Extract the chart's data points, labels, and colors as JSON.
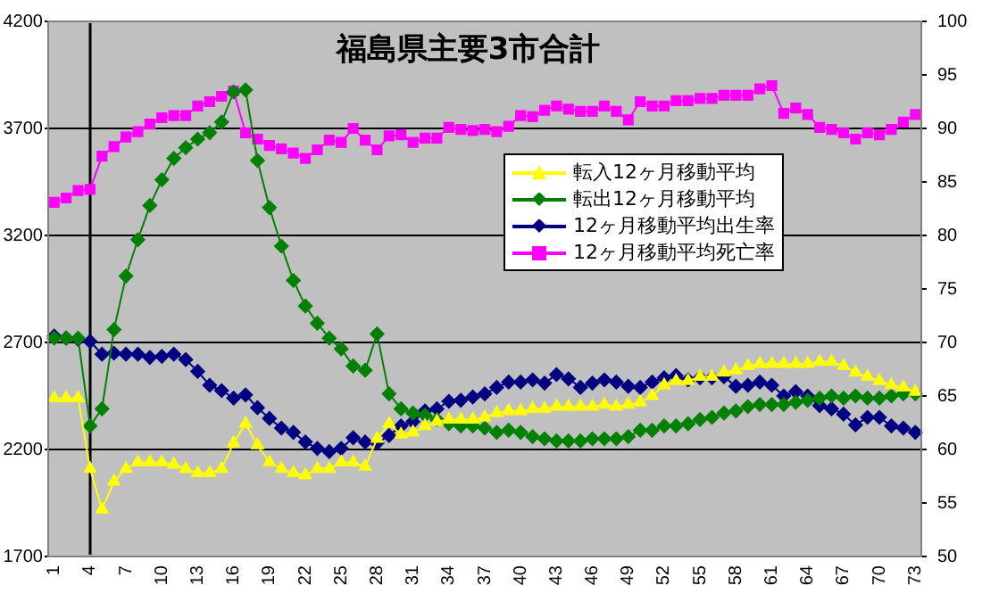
{
  "chart_data": {
    "type": "line",
    "title": "福島県主要3市合計",
    "categories": [
      "1",
      null,
      null,
      "4",
      null,
      null,
      "7",
      null,
      null,
      "10",
      null,
      null,
      "13",
      null,
      null,
      "16",
      null,
      null,
      "19",
      null,
      null,
      "22",
      null,
      null,
      "25",
      null,
      null,
      "28",
      null,
      null,
      "31",
      null,
      null,
      "34",
      null,
      null,
      "37",
      null,
      null,
      "40",
      null,
      null,
      "43",
      null,
      null,
      "46",
      null,
      null,
      "49",
      null,
      null,
      "52",
      null,
      null,
      "55",
      null,
      null,
      "58",
      null,
      null,
      "61",
      null,
      null,
      "64",
      null,
      null,
      "67",
      null,
      null,
      "70",
      null,
      null,
      "73"
    ],
    "series": [
      {
        "name": "転入12ヶ月移動平均",
        "color": "#ffff00",
        "marker": "triangle",
        "values": [
          2440,
          2440,
          2440,
          2110,
          1920,
          2050,
          2110,
          2140,
          2140,
          2140,
          2130,
          2110,
          2090,
          2090,
          2110,
          2230,
          2320,
          2220,
          2140,
          2110,
          2090,
          2080,
          2110,
          2110,
          2140,
          2140,
          2120,
          2250,
          2320,
          2270,
          2280,
          2310,
          2330,
          2340,
          2340,
          2340,
          2350,
          2370,
          2380,
          2380,
          2390,
          2390,
          2400,
          2400,
          2400,
          2400,
          2410,
          2400,
          2410,
          2420,
          2450,
          2500,
          2520,
          2520,
          2540,
          2540,
          2560,
          2570,
          2590,
          2600,
          2600,
          2600,
          2600,
          2600,
          2610,
          2610,
          2590,
          2560,
          2540,
          2520,
          2500,
          2490,
          2470
        ]
      },
      {
        "name": "転出12ヶ月移動平均",
        "color": "#008000",
        "marker": "diamond",
        "values": [
          2720,
          2720,
          2720,
          2310,
          2390,
          2760,
          3010,
          3180,
          3340,
          3460,
          3560,
          3610,
          3650,
          3680,
          3730,
          3870,
          3880,
          3550,
          3330,
          3150,
          2990,
          2870,
          2790,
          2720,
          2670,
          2590,
          2570,
          2740,
          2460,
          2390,
          2370,
          2360,
          2340,
          2320,
          2310,
          2310,
          2300,
          2280,
          2290,
          2280,
          2260,
          2250,
          2240,
          2240,
          2240,
          2250,
          2250,
          2250,
          2260,
          2290,
          2290,
          2310,
          2310,
          2320,
          2340,
          2350,
          2370,
          2380,
          2400,
          2410,
          2410,
          2410,
          2420,
          2430,
          2440,
          2450,
          2440,
          2450,
          2440,
          2440,
          2450,
          2460,
          2460
        ]
      },
      {
        "name": "12ヶ月移動平均出生率",
        "color": "#000080",
        "marker": "diamond",
        "axis": "y2",
        "values": [
          70.6,
          70.4,
          70.3,
          70.1,
          68.9,
          69.0,
          68.9,
          68.9,
          68.6,
          68.7,
          68.9,
          68.4,
          67.3,
          66.0,
          65.5,
          64.8,
          65.1,
          63.9,
          62.9,
          62.0,
          61.6,
          60.7,
          60.1,
          59.8,
          60.1,
          61.1,
          60.7,
          60.6,
          61.3,
          62.2,
          62.6,
          63.6,
          63.8,
          64.5,
          64.6,
          64.9,
          65.2,
          65.8,
          66.3,
          66.3,
          66.5,
          66.2,
          67.0,
          66.6,
          65.8,
          66.2,
          66.5,
          66.3,
          65.9,
          65.8,
          66.3,
          66.7,
          66.9,
          66.5,
          66.7,
          66.7,
          66.8,
          65.9,
          66.0,
          66.3,
          66.0,
          65.0,
          65.4,
          65.0,
          64.1,
          63.8,
          63.3,
          62.3,
          63.0,
          63.0,
          62.2,
          62.0,
          61.6
        ]
      },
      {
        "name": "12ヶ月移動平均死亡率",
        "color": "#ff00ff",
        "marker": "square",
        "axis": "y2",
        "values": [
          83.1,
          83.5,
          84.2,
          84.3,
          87.4,
          88.3,
          89.2,
          89.7,
          90.4,
          91.0,
          91.2,
          91.2,
          92.1,
          92.5,
          93.0,
          93.5,
          89.6,
          89.0,
          88.4,
          88.1,
          87.7,
          87.2,
          88.0,
          88.9,
          88.7,
          90.0,
          88.9,
          88.0,
          89.3,
          89.4,
          88.7,
          89.1,
          89.1,
          90.1,
          89.9,
          89.8,
          89.9,
          89.7,
          90.2,
          91.2,
          91.1,
          91.7,
          92.1,
          91.8,
          91.6,
          91.6,
          92.1,
          91.6,
          90.8,
          92.5,
          92.1,
          92.1,
          92.6,
          92.6,
          92.8,
          92.8,
          93.1,
          93.1,
          93.1,
          93.7,
          94.0,
          91.4,
          91.9,
          91.3,
          90.1,
          89.9,
          89.6,
          89.0,
          89.6,
          89.4,
          89.9,
          90.6,
          91.3
        ]
      }
    ],
    "ylim": [
      1700,
      4200
    ],
    "yticks": [
      1700,
      2200,
      2700,
      3200,
      3700,
      4200
    ],
    "y2lim": [
      50,
      100
    ],
    "y2ticks": [
      50,
      55,
      60,
      65,
      70,
      75,
      80,
      85,
      90,
      95,
      100
    ],
    "ref_lines": [
      {
        "axis": "x",
        "value": "4",
        "color": "#000000"
      }
    ],
    "grid": "y",
    "legend": "top right"
  }
}
